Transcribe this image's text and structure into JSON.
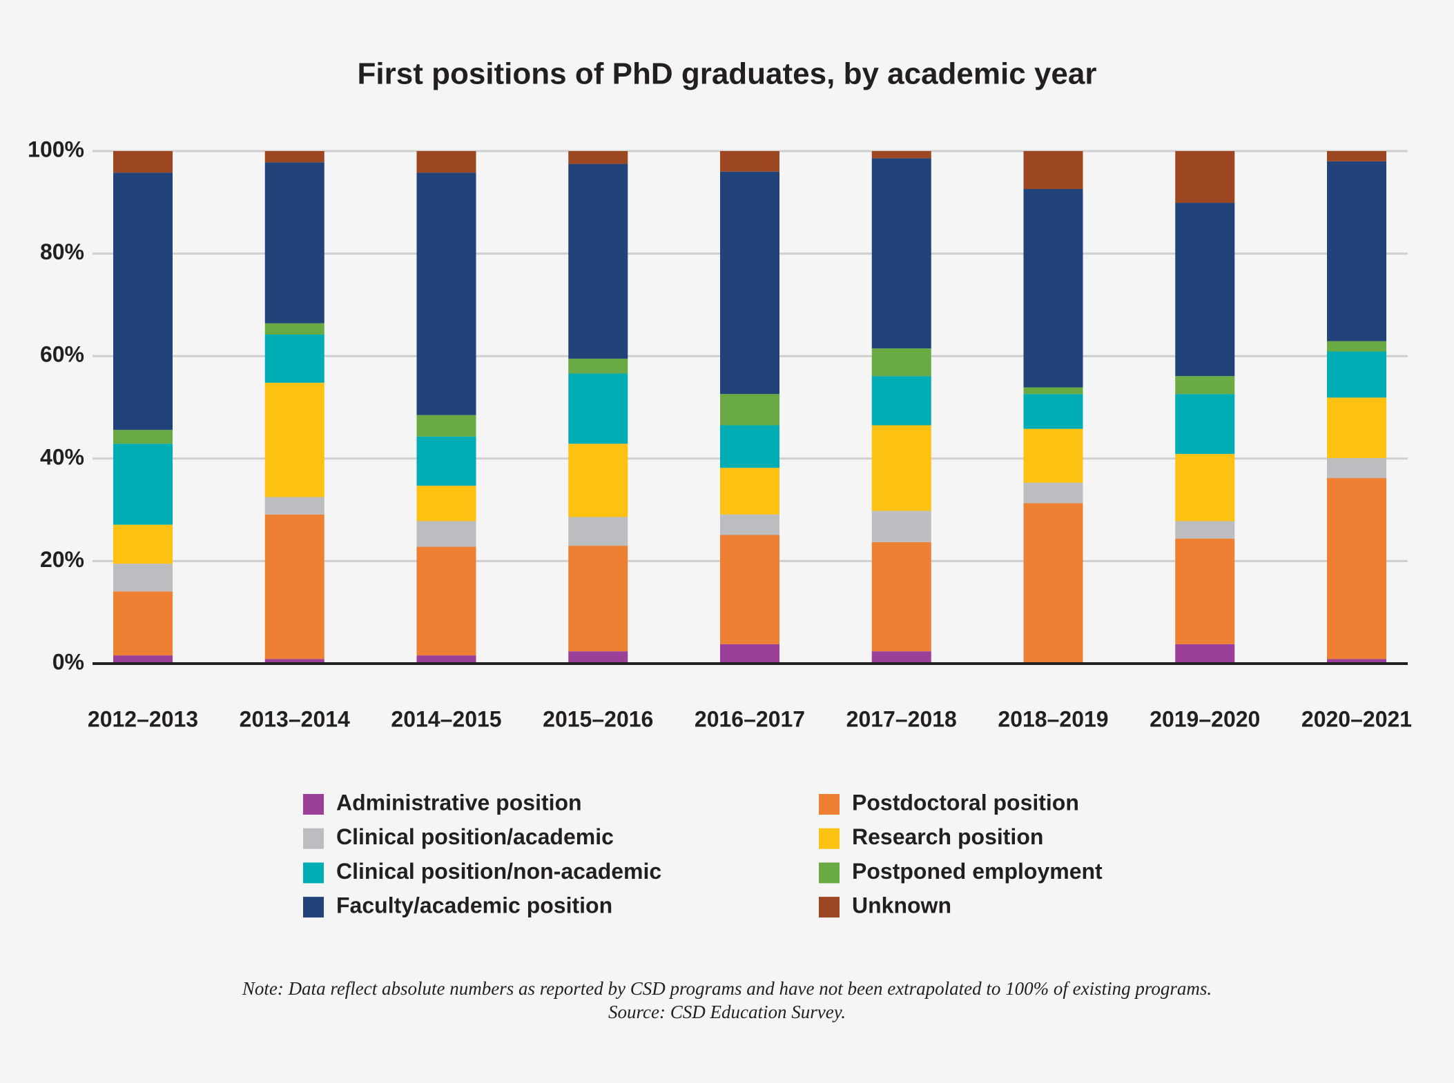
{
  "chart_data": {
    "type": "stacked_bar",
    "title": "First positions of PhD graduates, by academic year",
    "categories": [
      "2012–2013",
      "2013–2014",
      "2014–2015",
      "2015–2016",
      "2016–2017",
      "2017–2018",
      "2018–2019",
      "2019–2020",
      "2020–2021"
    ],
    "series": [
      {
        "name": "Administrative position",
        "color": "#9b3f99",
        "values": [
          1.6,
          0.9,
          1.6,
          2.4,
          3.8,
          2.4,
          0,
          3.8,
          0.9
        ]
      },
      {
        "name": "Postdoctoral position",
        "color": "#ee8033",
        "values": [
          12.5,
          28.2,
          21.2,
          20.6,
          21.3,
          21.3,
          31.3,
          20.6,
          35.3
        ]
      },
      {
        "name": "Clinical position/academic",
        "color": "#bcbdc0",
        "values": [
          5.4,
          3.4,
          5.0,
          5.6,
          4.0,
          6.1,
          4.0,
          3.4,
          3.9
        ]
      },
      {
        "name": "Research position",
        "color": "#fdc112",
        "values": [
          7.6,
          22.3,
          6.9,
          14.3,
          9.1,
          16.7,
          10.5,
          13.1,
          11.8
        ]
      },
      {
        "name": "Clinical position/non-academic",
        "color": "#00adb5",
        "values": [
          15.8,
          9.4,
          9.6,
          13.7,
          8.3,
          9.6,
          6.8,
          11.7,
          9.0
        ]
      },
      {
        "name": "Postponed employment",
        "color": "#6aaa44",
        "values": [
          2.7,
          2.2,
          4.2,
          2.9,
          6.1,
          5.4,
          1.3,
          3.5,
          2.0
        ]
      },
      {
        "name": "Faculty/academic position",
        "color": "#22427a",
        "values": [
          50.2,
          31.4,
          47.3,
          38.0,
          43.4,
          37.1,
          38.7,
          33.8,
          35.1
        ]
      },
      {
        "name": "Unknown",
        "color": "#9c4622",
        "values": [
          4.2,
          2.2,
          4.2,
          2.5,
          4.0,
          1.4,
          7.4,
          10.1,
          2.0
        ]
      }
    ],
    "ylim": [
      0,
      100
    ],
    "yticks": [
      {
        "value": 0,
        "label": "0%"
      },
      {
        "value": 20,
        "label": "20%"
      },
      {
        "value": 40,
        "label": "40%"
      },
      {
        "value": 60,
        "label": "60%"
      },
      {
        "value": 80,
        "label": "80%"
      },
      {
        "value": 100,
        "label": "100%"
      }
    ],
    "grid": true,
    "legend": "bottom",
    "notes": [
      "Note: Data reflect absolute numbers as reported by CSD programs and have not been extrapolated to 100% of existing programs.",
      "Source: CSD Education Survey."
    ]
  }
}
